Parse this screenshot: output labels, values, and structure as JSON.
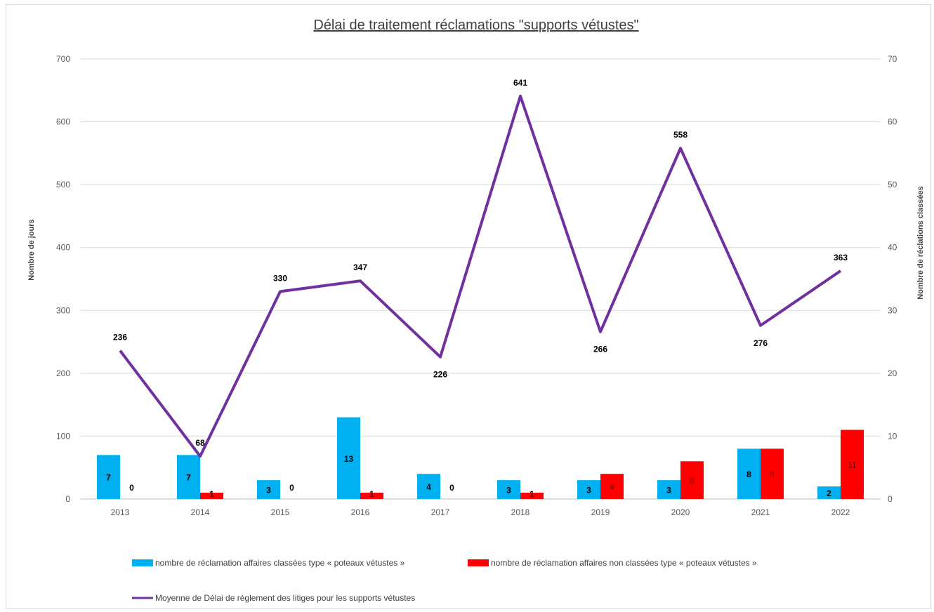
{
  "chart_data": {
    "type": "bar",
    "title": "Délai de traitement réclamations \"supports vétustes\"",
    "ylabel_left": "Nombre de jours",
    "ylabel_right": "Nombre de réclations classées",
    "ylim_left": [
      0,
      700
    ],
    "ylim_right": [
      0,
      70
    ],
    "yticks_left": [
      "0",
      "100",
      "200",
      "300",
      "400",
      "500",
      "600",
      "700"
    ],
    "yticks_right": [
      "0",
      "10",
      "20",
      "30",
      "40",
      "50",
      "60",
      "70"
    ],
    "grid": true,
    "legend_position": "bottom",
    "categories": [
      "2013",
      "2014",
      "2015",
      "2016",
      "2017",
      "2018",
      "2019",
      "2020",
      "2021",
      "2022"
    ],
    "series": [
      {
        "name": "nombre de réclamation affaires classées type « poteaux vétustes »",
        "type": "bar",
        "axis": "right",
        "color": "#00b0f0",
        "values": [
          7,
          7,
          3,
          13,
          4,
          3,
          3,
          3,
          8,
          2
        ]
      },
      {
        "name": "nombre de réclamation affaires non classées type « poteaux vétustes »",
        "type": "bar",
        "axis": "right",
        "color": "#ff0000",
        "values": [
          0,
          1,
          0,
          1,
          0,
          1,
          4,
          6,
          8,
          11
        ]
      },
      {
        "name": "Moyenne de Délai de règlement des litiges pour les supports vétustes",
        "type": "line",
        "axis": "left",
        "color": "#7030a0",
        "values": [
          236,
          68,
          330,
          347,
          226,
          641,
          266,
          558,
          276,
          363
        ]
      }
    ]
  }
}
